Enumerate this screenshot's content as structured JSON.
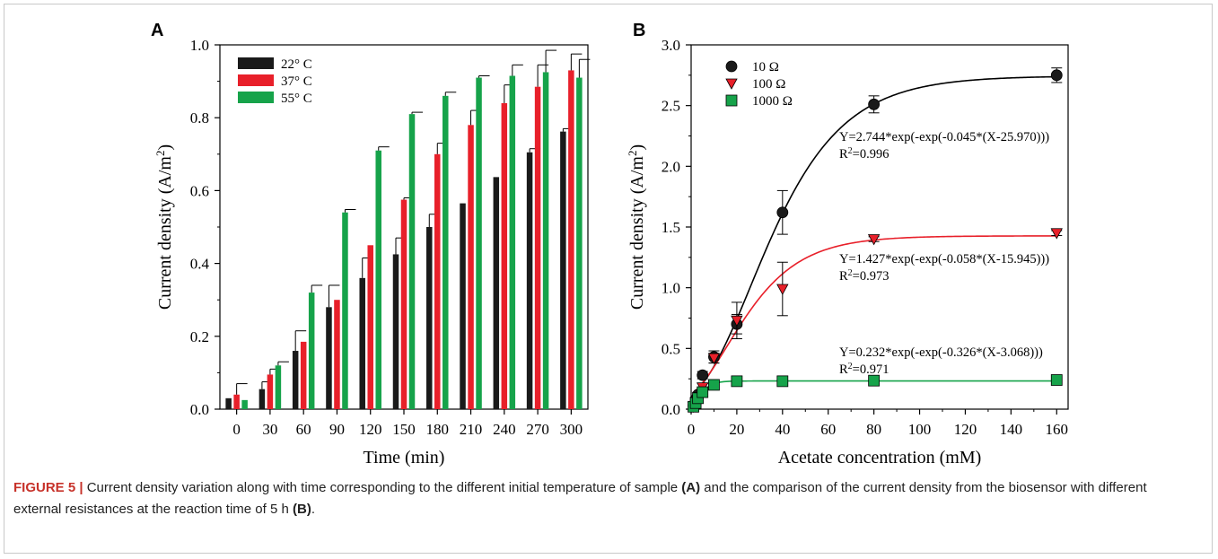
{
  "figure": {
    "caption_label": "FIGURE 5 |",
    "caption_text_1": " Current density variation along with time corresponding to the different initial temperature of sample ",
    "caption_ref_a": "(A)",
    "caption_text_2": " and the comparison of the current density from the biosensor with different external resistances at the reaction time of 5 h ",
    "caption_ref_b": "(B)",
    "caption_text_3": "."
  },
  "colors": {
    "black": "#1a1a1a",
    "red": "#e8202a",
    "green": "#16a34a"
  },
  "chart_data": [
    {
      "panel_label": "A",
      "type": "bar",
      "xlabel": "Time (min)",
      "ylabel": "Current density (A/m",
      "ylabel_sup": "2",
      "ylabel_end": ")",
      "ylim": [
        0,
        1.0
      ],
      "yticks": [
        "0.0",
        "0.2",
        "0.4",
        "0.6",
        "0.8",
        "1.0"
      ],
      "legend_position": "top-left",
      "categories": [
        "0",
        "30",
        "60",
        "90",
        "120",
        "150",
        "180",
        "210",
        "240",
        "270",
        "300"
      ],
      "series": [
        {
          "name": "22° C",
          "color": "#1a1a1a",
          "values": [
            0.03,
            0.055,
            0.16,
            0.28,
            0.36,
            0.425,
            0.5,
            0.565,
            0.637,
            0.705,
            0.762
          ],
          "errors": [
            0.0,
            0.02,
            0.055,
            0.06,
            0.055,
            0.045,
            0.035,
            0.0,
            0.0,
            0.01,
            0.008
          ]
        },
        {
          "name": "37° C",
          "color": "#e8202a",
          "values": [
            0.04,
            0.095,
            0.185,
            0.3,
            0.45,
            0.575,
            0.7,
            0.78,
            0.84,
            0.885,
            0.93
          ],
          "errors": [
            0.03,
            0.015,
            0.0,
            0.0,
            0.0,
            0.005,
            0.03,
            0.04,
            0.05,
            0.06,
            0.045
          ]
        },
        {
          "name": "55° C",
          "color": "#16a34a",
          "values": [
            0.025,
            0.12,
            0.32,
            0.54,
            0.71,
            0.81,
            0.86,
            0.91,
            0.915,
            0.925,
            0.91
          ],
          "errors": [
            0.0,
            0.01,
            0.02,
            0.008,
            0.01,
            0.005,
            0.01,
            0.005,
            0.03,
            0.06,
            0.05
          ]
        }
      ]
    },
    {
      "panel_label": "B",
      "type": "scatter",
      "xlabel": "Acetate concentration (mM)",
      "ylabel": "Current density (A/m",
      "ylabel_sup": "2",
      "ylabel_end": ")",
      "xlim": [
        0,
        165
      ],
      "ylim": [
        0,
        3.0
      ],
      "xticks": [
        "0",
        "20",
        "40",
        "60",
        "80",
        "100",
        "120",
        "140",
        "160"
      ],
      "yticks": [
        "0.0",
        "0.5",
        "1.0",
        "1.5",
        "2.0",
        "2.5",
        "3.0"
      ],
      "legend_position": "top-left",
      "series": [
        {
          "name": "10 Ω",
          "marker": "circle",
          "color": "#1a1a1a",
          "x": [
            1,
            2,
            3,
            5,
            10,
            20,
            40,
            80,
            160
          ],
          "y": [
            0.03,
            0.08,
            0.12,
            0.28,
            0.43,
            0.7,
            1.62,
            2.51,
            2.75
          ],
          "errors": [
            0.01,
            0.02,
            0.02,
            0.03,
            0.05,
            0.08,
            0.18,
            0.07,
            0.06
          ],
          "fit": {
            "a": 2.744,
            "k": 0.045,
            "x0": 25.97
          },
          "equation": "Y=2.744*exp(-exp(-0.045*(X-25.970)))",
          "r2_label": "R",
          "r2_sup": "2",
          "r2_value": "=0.996"
        },
        {
          "name": "100 Ω",
          "marker": "triangle-down",
          "color": "#e8202a",
          "x": [
            1,
            2,
            3,
            5,
            10,
            20,
            40,
            80,
            160
          ],
          "y": [
            0.02,
            0.06,
            0.1,
            0.18,
            0.42,
            0.73,
            0.99,
            1.4,
            1.45
          ],
          "errors": [
            0.01,
            0.01,
            0.02,
            0.03,
            0.04,
            0.15,
            0.22,
            0.02,
            0.02
          ],
          "fit": {
            "a": 1.427,
            "k": 0.058,
            "x0": 15.945
          },
          "equation": "Y=1.427*exp(-exp(-0.058*(X-15.945)))",
          "r2_label": "R",
          "r2_sup": "2",
          "r2_value": "=0.973"
        },
        {
          "name": "1000 Ω",
          "marker": "square",
          "color": "#16a34a",
          "x": [
            1,
            2,
            3,
            5,
            10,
            20,
            40,
            80,
            160
          ],
          "y": [
            0.02,
            0.05,
            0.09,
            0.14,
            0.2,
            0.23,
            0.23,
            0.235,
            0.24
          ],
          "errors": [
            0,
            0,
            0,
            0,
            0,
            0,
            0,
            0,
            0
          ],
          "fit": {
            "a": 0.232,
            "k": 0.326,
            "x0": 3.068
          },
          "equation": "Y=0.232*exp(-exp(-0.326*(X-3.068)))",
          "r2_label": "R",
          "r2_sup": "2",
          "r2_value": "=0.971"
        }
      ]
    }
  ]
}
